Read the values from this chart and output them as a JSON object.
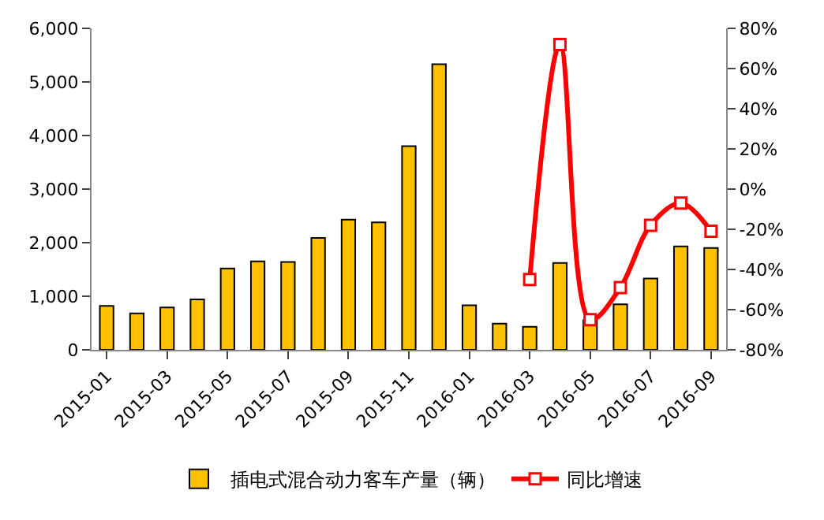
{
  "chart_data": {
    "type": "bar",
    "categories": [
      "2015-01",
      null,
      "2015-03",
      null,
      "2015-05",
      null,
      "2015-07",
      null,
      "2015-09",
      null,
      "2015-11",
      null,
      "2016-01",
      null,
      "2016-03",
      null,
      "2016-05",
      null,
      "2016-07",
      null,
      "2016-09"
    ],
    "series": [
      {
        "name": "插电式混合动力客车产量（辆）",
        "color": "#ffc000",
        "values": [
          820,
          680,
          790,
          940,
          1520,
          1650,
          1640,
          2090,
          2430,
          2380,
          3800,
          5330,
          830,
          490,
          430,
          1620,
          550,
          850,
          1330,
          1930,
          1900
        ]
      },
      {
        "name": "同比增速",
        "type": "line",
        "axis": "y2",
        "color": "#ff0000",
        "marker": "square",
        "values": [
          null,
          null,
          null,
          null,
          null,
          null,
          null,
          null,
          null,
          null,
          null,
          null,
          null,
          null,
          -45,
          72,
          -65,
          -49,
          -18,
          -7,
          -21
        ]
      }
    ],
    "ylim": [
      0,
      6000
    ],
    "yticks": [
      0,
      {
        "value": 1000,
        "label": "1,000"
      },
      {
        "value": 2000,
        "label": "2,000"
      },
      {
        "value": 3000,
        "label": "3,000"
      },
      {
        "value": 4000,
        "label": "4,000"
      },
      {
        "value": 5000,
        "label": "5,000"
      },
      {
        "value": 6000,
        "label": "6,000"
      }
    ],
    "y2lim": [
      -80,
      80
    ],
    "y2ticks": [
      {
        "value": -80,
        "label": "-80%"
      },
      {
        "value": -60,
        "label": "-60%"
      },
      {
        "value": -40,
        "label": "-40%"
      },
      {
        "value": -20,
        "label": "-20%"
      },
      {
        "value": 0,
        "label": "0%"
      },
      {
        "value": 20,
        "label": "20%"
      },
      {
        "value": 40,
        "label": "40%"
      },
      {
        "value": 60,
        "label": "60%"
      },
      {
        "value": 80,
        "label": "80%"
      }
    ],
    "legend": "bottom"
  }
}
